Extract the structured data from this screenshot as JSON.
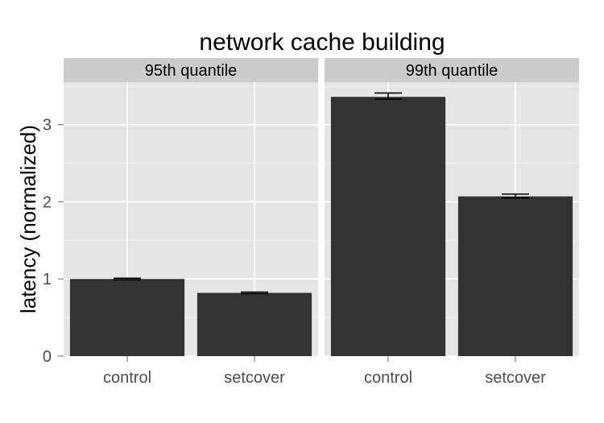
{
  "chart_data": {
    "type": "bar",
    "title": "network cache building",
    "ylabel": "latency (normalized)",
    "xlabel": "",
    "ylim": [
      0,
      3.55
    ],
    "yticks": [
      0,
      1,
      2,
      3
    ],
    "categories": [
      "control",
      "setcover"
    ],
    "facets": [
      {
        "label": "95th quantile",
        "values": [
          1.0,
          0.82
        ],
        "error_low": [
          0.99,
          0.81
        ],
        "error_high": [
          1.01,
          0.83
        ]
      },
      {
        "label": "99th quantile",
        "values": [
          3.36,
          2.07
        ],
        "error_low": [
          3.33,
          2.05
        ],
        "error_high": [
          3.41,
          2.1
        ]
      }
    ],
    "colors": {
      "bar": "#333333",
      "panel_bg": "#e5e5e5",
      "strip_bg": "#cccccc",
      "grid_major": "#ffffff",
      "grid_minor": "#f2f2f2"
    },
    "grid": true,
    "legend": "none"
  }
}
